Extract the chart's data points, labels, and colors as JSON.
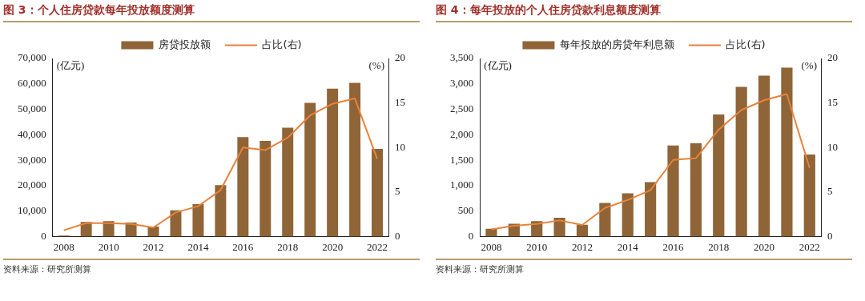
{
  "chart_data": [
    {
      "type": "bar",
      "title": "图 3：个人住房贷款每年投放额度测算",
      "ylabel": "(亿元)",
      "y2label": "(%)",
      "legend": "top",
      "categories": [
        "2008",
        null,
        "2010",
        null,
        "2012",
        null,
        "2014",
        null,
        "2016",
        null,
        "2018",
        null,
        "2020",
        null,
        "2022"
      ],
      "series": [
        {
          "name": "房贷投放额",
          "color": "#8f6437",
          "values": [
            400,
            5700,
            6000,
            5500,
            3900,
            10300,
            12700,
            20200,
            39100,
            37600,
            42800,
            52500,
            58100,
            60400,
            34400
          ]
        },
        {
          "name": "占比(右)",
          "type": "line",
          "axis": "y2",
          "color": "#e8823a",
          "values": [
            0.7,
            1.5,
            1.5,
            1.4,
            1.0,
            2.7,
            3.4,
            5.2,
            10.0,
            9.7,
            11.1,
            13.6,
            14.9,
            15.5,
            8.7
          ]
        }
      ],
      "ylim": [
        0,
        70000
      ],
      "yticks": [
        {
          "value": 0,
          "label": "0"
        },
        {
          "value": 10000,
          "label": "10,000"
        },
        {
          "value": 20000,
          "label": "20,000"
        },
        {
          "value": 30000,
          "label": "30,000"
        },
        {
          "value": 40000,
          "label": "40,000"
        },
        {
          "value": 50000,
          "label": "50,000"
        },
        {
          "value": 60000,
          "label": "60,000"
        },
        {
          "value": 70000,
          "label": "70,000"
        }
      ],
      "y2lim": [
        0,
        20
      ],
      "y2ticks": [
        0,
        5,
        10,
        15,
        20
      ],
      "annotations": [
        "资料来源：研究所测算"
      ]
    },
    {
      "type": "bar",
      "title": "图 4：每年投放的个人住房贷款利息额度测算",
      "ylabel": "(亿元)",
      "y2label": "(%)",
      "legend": "top",
      "categories": [
        "2008",
        null,
        "2010",
        null,
        "2012",
        null,
        "2014",
        null,
        "2016",
        null,
        "2018",
        null,
        "2020",
        null,
        "2022"
      ],
      "series": [
        {
          "name": "每年投放的房贷年利息额",
          "color": "#8f6437",
          "values": [
            150,
            250,
            300,
            370,
            230,
            660,
            850,
            1070,
            1790,
            1830,
            2400,
            2940,
            3160,
            3320,
            1610
          ]
        },
        {
          "name": "占比(右)",
          "type": "line",
          "axis": "y2",
          "color": "#e8823a",
          "values": [
            0.8,
            1.2,
            1.4,
            1.8,
            1.3,
            3.2,
            4.1,
            5.2,
            8.6,
            8.8,
            12.0,
            14.2,
            15.3,
            16.0,
            7.7
          ]
        }
      ],
      "ylim": [
        0,
        3500
      ],
      "yticks": [
        {
          "value": 0,
          "label": "0"
        },
        {
          "value": 500,
          "label": "500"
        },
        {
          "value": 1000,
          "label": "1,000"
        },
        {
          "value": 1500,
          "label": "1,500"
        },
        {
          "value": 2000,
          "label": "2,000"
        },
        {
          "value": 2500,
          "label": "2,500"
        },
        {
          "value": 3000,
          "label": "3,000"
        },
        {
          "value": 3500,
          "label": "3,500"
        }
      ],
      "y2lim": [
        0,
        20
      ],
      "y2ticks": [
        0,
        5,
        10,
        15,
        20
      ],
      "annotations": [
        "资料来源：研究所测算"
      ]
    }
  ]
}
